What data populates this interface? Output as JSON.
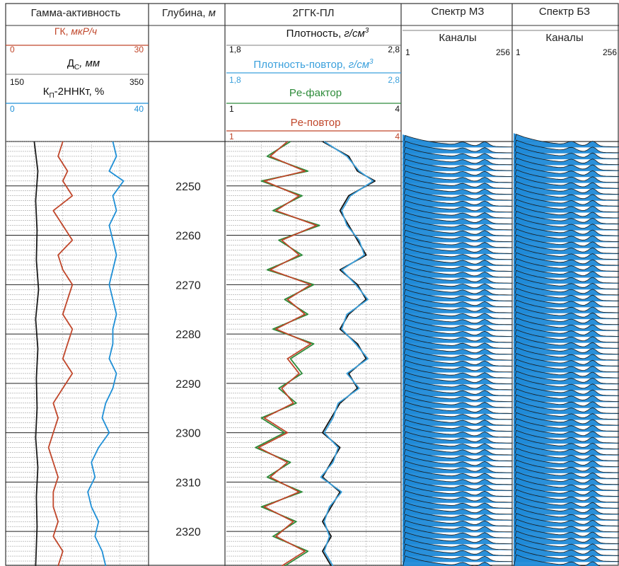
{
  "header": {
    "gamma": {
      "title": "Гамма-активность",
      "gk": {
        "label": "ГК, ",
        "unit": "мкР/ч",
        "min": "0",
        "max": "30",
        "color": "#c0462a"
      },
      "dc": {
        "label": "Д",
        "sub": "С",
        "unit": ", мм",
        "min": "150",
        "max": "350",
        "color": "#1a1a1a"
      },
      "kp": {
        "label": "К",
        "sub": "П",
        "rest": "-2ННКт, %",
        "min": "0",
        "max": "40",
        "color": "#1e8fd6"
      }
    },
    "depth": {
      "title": "Глубина, ",
      "unit": "м"
    },
    "density": {
      "title": "2ГГК-ПЛ",
      "plot": {
        "label": "Плотность, ",
        "unit": "г/см",
        "sup": "3",
        "min": "1,8",
        "max": "2,8",
        "color": "#111111"
      },
      "repeat": {
        "label": "Плотность-повтор, ",
        "unit": "г/см",
        "sup": "3",
        "min": "1,8",
        "max": "2,8",
        "color": "#3aa0dc"
      },
      "pe": {
        "label": "Pe-фактор",
        "min": "1",
        "max": "4",
        "color": "#2e8b3a"
      },
      "pe_repeat": {
        "label": "Pe-повтор",
        "min": "1",
        "max": "4",
        "color": "#c0462a"
      }
    },
    "spec_mz": {
      "title": "Спектр МЗ",
      "sub": "Каналы",
      "min": "1",
      "max": "256"
    },
    "spec_bz": {
      "title": "Спектр БЗ",
      "sub": "Каналы",
      "min": "1",
      "max": "256"
    }
  },
  "chart_data": {
    "type": "line",
    "y_axis": "Глубина",
    "depth_labels": [
      "2250",
      "2260",
      "2270",
      "2280",
      "2290",
      "2300",
      "2310",
      "2320"
    ],
    "depth_range": [
      2241,
      2327
    ],
    "series": [
      {
        "name": "ГК",
        "xlim": [
          0,
          30
        ],
        "color": "#c0462a",
        "depth": [
          2241,
          2244,
          2247,
          2249,
          2252,
          2255,
          2258,
          2261,
          2264,
          2267,
          2270,
          2273,
          2276,
          2279,
          2282,
          2285,
          2288,
          2291,
          2294,
          2297,
          2300,
          2303,
          2306,
          2309,
          2312,
          2315,
          2318,
          2321,
          2324,
          2327
        ],
        "values": [
          12,
          11,
          13,
          12,
          14,
          10,
          12,
          14,
          11,
          12,
          14,
          13,
          12,
          14,
          13,
          12,
          14,
          12,
          10,
          11,
          10,
          9,
          10,
          11,
          10,
          10,
          11,
          10,
          12,
          11
        ]
      },
      {
        "name": "Дс",
        "xlim": [
          150,
          350
        ],
        "color": "#1a1a1a",
        "depth": [
          2241,
          2247,
          2253,
          2259,
          2265,
          2271,
          2277,
          2283,
          2289,
          2295,
          2301,
          2307,
          2313,
          2319,
          2327
        ],
        "values": [
          190,
          195,
          192,
          194,
          193,
          196,
          192,
          195,
          193,
          194,
          192,
          195,
          193,
          194,
          192
        ]
      },
      {
        "name": "Кп-2ННКт",
        "xlim": [
          0,
          40
        ],
        "color": "#1e8fd6",
        "depth": [
          2241,
          2244,
          2247,
          2249,
          2252,
          2255,
          2258,
          2261,
          2264,
          2267,
          2270,
          2273,
          2276,
          2279,
          2282,
          2285,
          2288,
          2291,
          2294,
          2297,
          2300,
          2303,
          2306,
          2309,
          2312,
          2315,
          2318,
          2321,
          2324,
          2327
        ],
        "values": [
          30,
          31,
          29,
          33,
          30,
          31,
          29,
          30,
          31,
          30,
          29,
          30,
          31,
          30,
          30,
          29,
          31,
          30,
          28,
          27,
          29,
          26,
          24,
          25,
          23,
          24,
          26,
          25,
          27,
          28
        ]
      },
      {
        "name": "Плотность",
        "xlim": [
          1.8,
          2.8
        ],
        "color": "#111111",
        "depth": [
          2241,
          2244,
          2247,
          2249,
          2252,
          2255,
          2258,
          2261,
          2264,
          2267,
          2270,
          2273,
          2276,
          2279,
          2282,
          2285,
          2288,
          2291,
          2294,
          2297,
          2300,
          2303,
          2306,
          2309,
          2312,
          2315,
          2318,
          2321,
          2324,
          2327
        ],
        "values": [
          2.35,
          2.5,
          2.55,
          2.65,
          2.5,
          2.45,
          2.5,
          2.55,
          2.6,
          2.45,
          2.55,
          2.6,
          2.5,
          2.45,
          2.55,
          2.6,
          2.5,
          2.55,
          2.45,
          2.4,
          2.35,
          2.45,
          2.4,
          2.35,
          2.45,
          2.4,
          2.35,
          2.4,
          2.35,
          2.4
        ]
      },
      {
        "name": "Плотность-повтор",
        "xlim": [
          1.8,
          2.8
        ],
        "color": "#3aa0dc",
        "depth": [
          2241,
          2244,
          2247,
          2249,
          2252,
          2255,
          2258,
          2261,
          2264,
          2267,
          2270,
          2273,
          2276,
          2279,
          2282,
          2285,
          2288,
          2291,
          2294,
          2297,
          2300,
          2303,
          2306,
          2309,
          2312,
          2315,
          2318,
          2321,
          2324,
          2327
        ],
        "values": [
          2.36,
          2.49,
          2.56,
          2.64,
          2.51,
          2.46,
          2.49,
          2.56,
          2.59,
          2.46,
          2.54,
          2.61,
          2.49,
          2.46,
          2.54,
          2.61,
          2.49,
          2.56,
          2.44,
          2.41,
          2.36,
          2.44,
          2.41,
          2.34,
          2.46,
          2.39,
          2.36,
          2.39,
          2.36,
          2.41
        ]
      },
      {
        "name": "Pe-фактор",
        "xlim": [
          1,
          4
        ],
        "color": "#2e8b3a",
        "depth": [
          2241,
          2244,
          2247,
          2249,
          2252,
          2255,
          2258,
          2261,
          2264,
          2267,
          2270,
          2273,
          2276,
          2279,
          2282,
          2285,
          2288,
          2291,
          2294,
          2297,
          2300,
          2303,
          2306,
          2309,
          2312,
          2315,
          2318,
          2321,
          2324,
          2327
        ],
        "values": [
          2.1,
          1.7,
          2.4,
          1.6,
          2.3,
          1.8,
          2.6,
          1.9,
          2.3,
          1.7,
          2.5,
          2.0,
          2.4,
          1.8,
          2.5,
          2.1,
          2.3,
          1.9,
          2.2,
          1.6,
          2.0,
          1.5,
          2.1,
          1.7,
          2.3,
          1.6,
          2.2,
          1.8,
          2.4,
          2.0
        ]
      },
      {
        "name": "Pe-повтор",
        "xlim": [
          1,
          4
        ],
        "color": "#c0462a",
        "depth": [
          2241,
          2244,
          2247,
          2249,
          2252,
          2255,
          2258,
          2261,
          2264,
          2267,
          2270,
          2273,
          2276,
          2279,
          2282,
          2285,
          2288,
          2291,
          2294,
          2297,
          2300,
          2303,
          2306,
          2309,
          2312,
          2315,
          2318,
          2321,
          2324,
          2327
        ],
        "values": [
          2.05,
          1.75,
          2.35,
          1.65,
          2.25,
          1.85,
          2.55,
          1.95,
          2.25,
          1.75,
          2.45,
          2.05,
          2.35,
          1.85,
          2.45,
          2.05,
          2.25,
          1.95,
          2.15,
          1.65,
          2.05,
          1.55,
          2.05,
          1.75,
          2.25,
          1.65,
          2.15,
          1.85,
          2.35,
          1.95
        ]
      }
    ],
    "spectra": {
      "channels": [
        1,
        256
      ],
      "fill_color": "#1f8ad8",
      "line_color": "#1a1a1a",
      "tracks": [
        "Спектр МЗ",
        "Спектр БЗ"
      ]
    },
    "grid": true
  }
}
